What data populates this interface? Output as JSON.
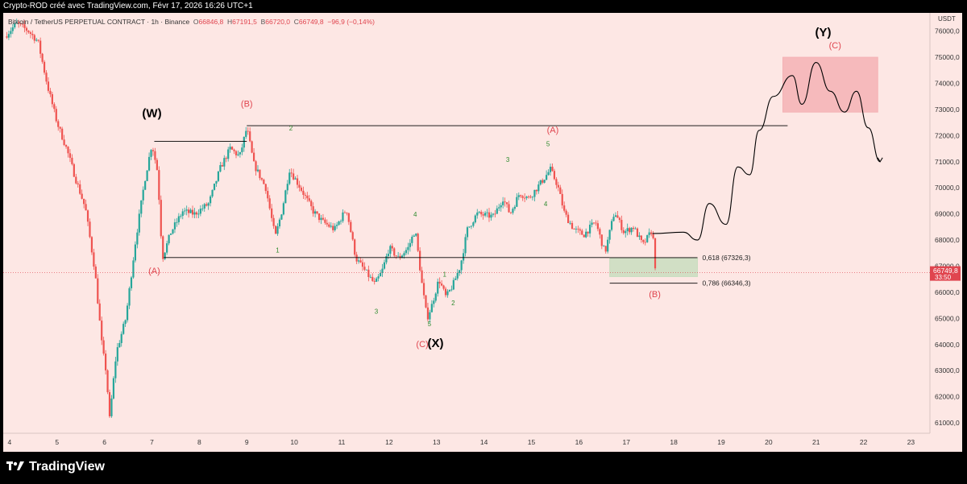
{
  "header": {
    "caption": "Crypto-ROD créé avec TradingView.com, Févr 17, 2026 16:26 UTC+1"
  },
  "legend": {
    "symbol": "Bitcoin / TetherUS PERPETUAL CONTRACT · 1h · Binance",
    "o_label": "O",
    "o": "66846,8",
    "h_label": "H",
    "h": "67191,5",
    "l_label": "B",
    "l": "66720,0",
    "c_label": "C",
    "c": "66749,8",
    "change": "−96,9 (−0,14%)"
  },
  "footer": {
    "brand": "TradingView",
    "logo_icon": "tradingview-logo-icon"
  },
  "chart_data": {
    "type": "candlestick",
    "title": "",
    "unit_label": "USDT",
    "ylim": [
      60600,
      76700
    ],
    "y_ticks": [
      "61000,0",
      "62000,0",
      "63000,0",
      "64000,0",
      "65000,0",
      "66000,0",
      "67000,0",
      "68000,0",
      "69000,0",
      "70000,0",
      "71000,0",
      "72000,0",
      "73000,0",
      "74000,0",
      "75000,0",
      "76000,0"
    ],
    "y_tick_values": [
      61000,
      62000,
      63000,
      64000,
      65000,
      66000,
      67000,
      68000,
      69000,
      70000,
      71000,
      72000,
      73000,
      74000,
      75000,
      76000
    ],
    "x_range_days": [
      3.9,
      23.4
    ],
    "x_ticks": [
      {
        "day": 4,
        "label": "4"
      },
      {
        "day": 5,
        "label": "5"
      },
      {
        "day": 6,
        "label": "6"
      },
      {
        "day": 7,
        "label": "7"
      },
      {
        "day": 8,
        "label": "8"
      },
      {
        "day": 9,
        "label": "9"
      },
      {
        "day": 10,
        "label": "10"
      },
      {
        "day": 11,
        "label": "11"
      },
      {
        "day": 12,
        "label": "12"
      },
      {
        "day": 13,
        "label": "13"
      },
      {
        "day": 14,
        "label": "14"
      },
      {
        "day": 15,
        "label": "15"
      },
      {
        "day": 16,
        "label": "16"
      },
      {
        "day": 17,
        "label": "17"
      },
      {
        "day": 18,
        "label": "18"
      },
      {
        "day": 19,
        "label": "19"
      },
      {
        "day": 20,
        "label": "20"
      },
      {
        "day": 21,
        "label": "21"
      },
      {
        "day": 22,
        "label": "22"
      },
      {
        "day": 23,
        "label": "23"
      }
    ],
    "price_path": [
      [
        3.9,
        75800
      ],
      [
        4.15,
        76300
      ],
      [
        4.4,
        76000
      ],
      [
        4.6,
        75600
      ],
      [
        4.8,
        73900
      ],
      [
        5.0,
        72500
      ],
      [
        5.2,
        71500
      ],
      [
        5.4,
        70300
      ],
      [
        5.6,
        69200
      ],
      [
        5.8,
        66800
      ],
      [
        5.95,
        63900
      ],
      [
        6.05,
        62800
      ],
      [
        6.1,
        61000
      ],
      [
        6.25,
        63700
      ],
      [
        6.45,
        65000
      ],
      [
        6.65,
        67900
      ],
      [
        6.85,
        70300
      ],
      [
        7.0,
        71700
      ],
      [
        7.12,
        70600
      ],
      [
        7.22,
        67300
      ],
      [
        7.4,
        68300
      ],
      [
        7.65,
        69100
      ],
      [
        7.9,
        69000
      ],
      [
        8.2,
        69400
      ],
      [
        8.45,
        70800
      ],
      [
        8.65,
        71500
      ],
      [
        8.85,
        71200
      ],
      [
        9.0,
        72300
      ],
      [
        9.15,
        70900
      ],
      [
        9.4,
        70000
      ],
      [
        9.6,
        68100
      ],
      [
        9.75,
        69200
      ],
      [
        9.9,
        70700
      ],
      [
        10.1,
        70100
      ],
      [
        10.4,
        69100
      ],
      [
        10.6,
        68700
      ],
      [
        10.85,
        68400
      ],
      [
        11.1,
        69200
      ],
      [
        11.3,
        67300
      ],
      [
        11.5,
        66800
      ],
      [
        11.7,
        66300
      ],
      [
        11.85,
        66800
      ],
      [
        12.0,
        67700
      ],
      [
        12.2,
        67300
      ],
      [
        12.4,
        67700
      ],
      [
        12.55,
        68400
      ],
      [
        12.7,
        66200
      ],
      [
        12.8,
        65000
      ],
      [
        12.9,
        65500
      ],
      [
        13.05,
        66500
      ],
      [
        13.2,
        65800
      ],
      [
        13.35,
        66300
      ],
      [
        13.5,
        67000
      ],
      [
        13.65,
        68400
      ],
      [
        13.85,
        69000
      ],
      [
        14.2,
        68900
      ],
      [
        14.4,
        69600
      ],
      [
        14.55,
        69000
      ],
      [
        14.75,
        69800
      ],
      [
        14.95,
        69600
      ],
      [
        15.2,
        70200
      ],
      [
        15.4,
        70700
      ],
      [
        15.55,
        70100
      ],
      [
        15.7,
        69000
      ],
      [
        15.9,
        68400
      ],
      [
        16.1,
        68200
      ],
      [
        16.35,
        68700
      ],
      [
        16.55,
        67500
      ],
      [
        16.75,
        69100
      ],
      [
        16.95,
        68300
      ],
      [
        17.15,
        68500
      ],
      [
        17.35,
        67800
      ],
      [
        17.55,
        68400
      ],
      [
        17.62,
        66750
      ]
    ],
    "series": [
      {
        "name": "",
        "style": "black-hand-drawn-projection",
        "points": [
          [
            17.55,
            68250
          ],
          [
            18.2,
            68300
          ],
          [
            18.5,
            68000
          ],
          [
            18.75,
            69400
          ],
          [
            19.1,
            68600
          ],
          [
            19.35,
            70800
          ],
          [
            19.6,
            70500
          ],
          [
            19.8,
            72200
          ],
          [
            20.1,
            73500
          ],
          [
            20.5,
            74300
          ],
          [
            20.7,
            73200
          ],
          [
            21.0,
            74800
          ],
          [
            21.3,
            73700
          ],
          [
            21.6,
            72900
          ],
          [
            21.85,
            73700
          ],
          [
            22.1,
            72300
          ],
          [
            22.35,
            71000
          ]
        ]
      }
    ],
    "lines": [
      {
        "name": "wave-w-level",
        "x1": 7.05,
        "x2": 9.0,
        "y": 71780
      },
      {
        "name": "wave-b-level",
        "x1": 9.0,
        "x2": 20.4,
        "y": 72380
      },
      {
        "name": "wave-a-level",
        "x1": 7.25,
        "x2": 16.65,
        "y": 67330
      }
    ],
    "fib_levels": [
      {
        "ratio": "0,618",
        "value": "67326,3",
        "price": 67326.3,
        "label": "0,618 (67326,3)"
      },
      {
        "ratio": "0,786",
        "value": "66346,3",
        "price": 66346.3,
        "label": "0,786 (66346,3)"
      }
    ],
    "zones": [
      {
        "name": "support-zone",
        "x1": 16.65,
        "x2": 18.5,
        "y1": 66600,
        "y2": 67300,
        "color": "#c9ddc0"
      },
      {
        "name": "target-zone",
        "x1": 20.3,
        "x2": 22.3,
        "y1": 72900,
        "y2": 75000,
        "color": "#f4b2b5"
      }
    ],
    "wave_labels": [
      {
        "text": "(W)",
        "day": 7.0,
        "price": 72700,
        "color": "#000000",
        "size": "large"
      },
      {
        "text": "(B)",
        "day": 9.0,
        "price": 73100,
        "color": "#e0454f",
        "size": "medium"
      },
      {
        "text": "(A)",
        "day": 7.05,
        "price": 66700,
        "color": "#e0454f",
        "size": "medium"
      },
      {
        "text": "(C)",
        "day": 12.7,
        "price": 63900,
        "color": "#e0454f",
        "size": "medium"
      },
      {
        "text": "(X)",
        "day": 12.98,
        "price": 63900,
        "color": "#000000",
        "size": "large"
      },
      {
        "text": "(A)",
        "day": 15.45,
        "price": 72100,
        "color": "#e0454f",
        "size": "medium"
      },
      {
        "text": "(B)",
        "day": 17.6,
        "price": 65820,
        "color": "#e0454f",
        "size": "medium"
      },
      {
        "text": "(Y)",
        "day": 21.15,
        "price": 75800,
        "color": "#000000",
        "size": "large"
      },
      {
        "text": "(C)",
        "day": 21.4,
        "price": 75350,
        "color": "#e0454f",
        "size": "medium"
      },
      {
        "text": "1",
        "day": 9.65,
        "price": 67530,
        "color": "#2e8b2e",
        "size": "small"
      },
      {
        "text": "2",
        "day": 9.93,
        "price": 72200,
        "color": "#2e8b2e",
        "size": "small"
      },
      {
        "text": "3",
        "day": 11.73,
        "price": 65180,
        "color": "#2e8b2e",
        "size": "small"
      },
      {
        "text": "4",
        "day": 12.55,
        "price": 68900,
        "color": "#2e8b2e",
        "size": "small"
      },
      {
        "text": "5",
        "day": 12.85,
        "price": 64700,
        "color": "#2e8b2e",
        "size": "small"
      },
      {
        "text": "1",
        "day": 13.17,
        "price": 66600,
        "color": "#2e8b2e",
        "size": "small"
      },
      {
        "text": "2",
        "day": 13.35,
        "price": 65500,
        "color": "#2e8b2e",
        "size": "small"
      },
      {
        "text": "3",
        "day": 14.5,
        "price": 71000,
        "color": "#2e8b2e",
        "size": "small"
      },
      {
        "text": "4",
        "day": 15.3,
        "price": 69300,
        "color": "#2e8b2e",
        "size": "small"
      },
      {
        "text": "5",
        "day": 15.35,
        "price": 71600,
        "color": "#2e8b2e",
        "size": "small"
      }
    ],
    "last_price": {
      "value": "66749,8",
      "countdown": "33:50",
      "price": 66749.8,
      "color": "#e0454f"
    },
    "colors": {
      "background": "#fde7e4",
      "up": "#26a69a",
      "down": "#ef5350",
      "lines": "#000000",
      "axis_text": "#333333"
    },
    "grid": false,
    "legend_position": "top-left"
  }
}
